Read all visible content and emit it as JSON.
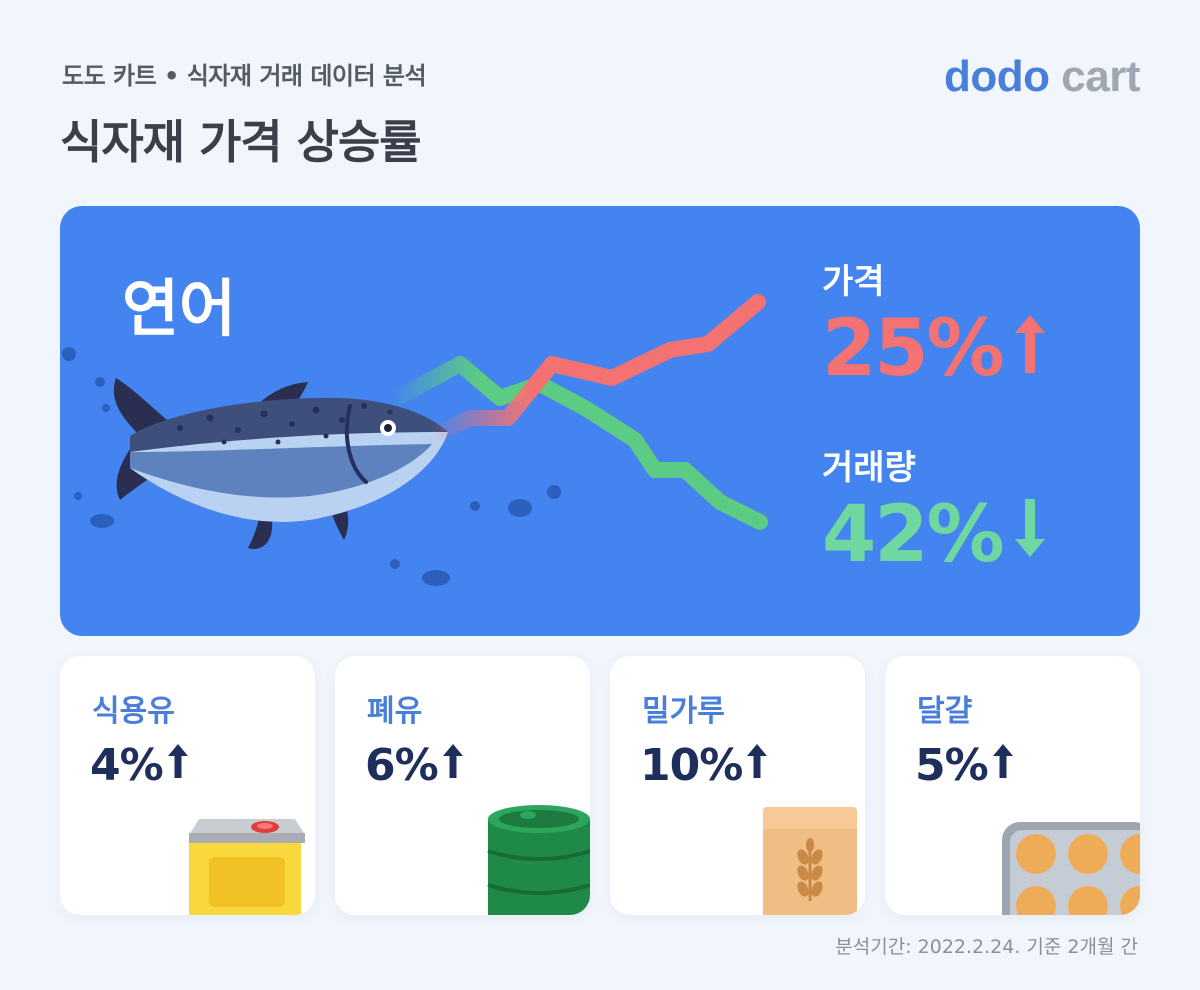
{
  "header": {
    "subtitle": "도도 카트 • 식자재 거래 데이터 분석",
    "title": "식자재 가격 상승률",
    "brand_part1": "dodo",
    "brand_part2": "cart"
  },
  "hero": {
    "item": "연어",
    "price_label": "가격",
    "price_value": "25%",
    "price_direction": "up",
    "price_color": "#f47272",
    "volume_label": "거래량",
    "volume_value": "42%",
    "volume_direction": "down",
    "volume_color": "#6fd7a0",
    "background": "#4384f0"
  },
  "items": [
    {
      "name": "식용유",
      "value": "4%",
      "direction": "up",
      "icon": "oil-can-icon"
    },
    {
      "name": "폐유",
      "value": "6%",
      "direction": "up",
      "icon": "oil-drum-icon"
    },
    {
      "name": "밀가루",
      "value": "10%",
      "direction": "up",
      "icon": "flour-bag-icon"
    },
    {
      "name": "달걀",
      "value": "5%",
      "direction": "up",
      "icon": "egg-tray-icon"
    }
  ],
  "footnote": "분석기간: 2022.2.24. 기준 2개월 간"
}
